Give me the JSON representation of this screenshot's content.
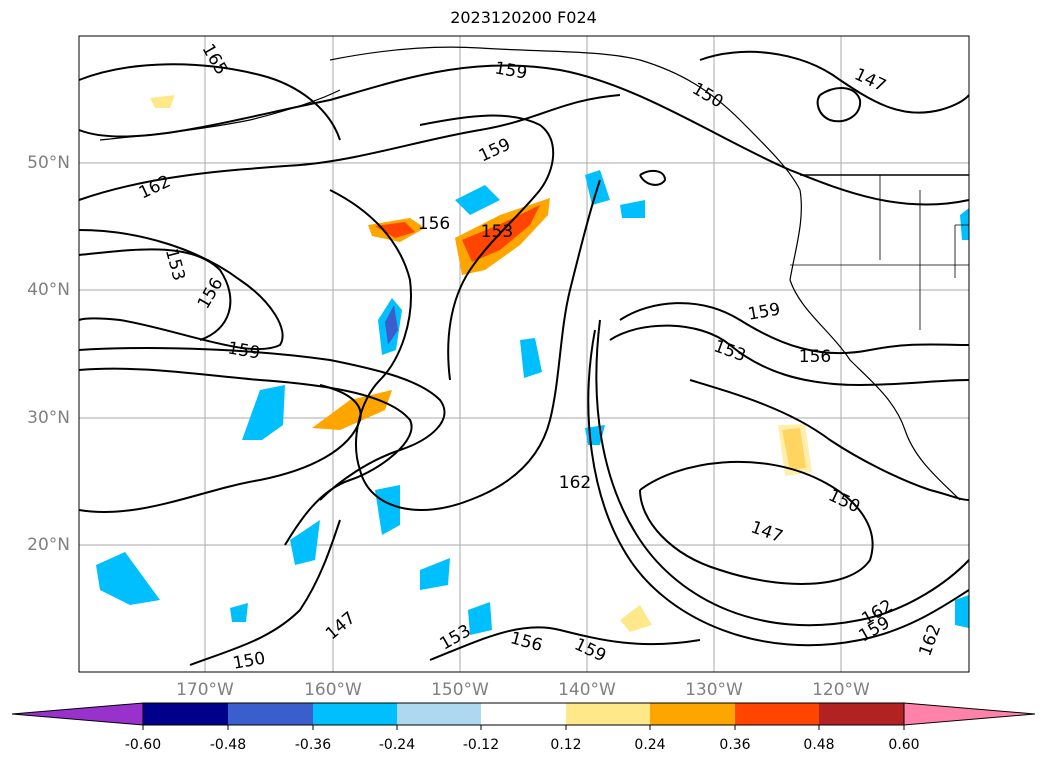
{
  "title": "2023120200 F024",
  "map": {
    "lat_labels": [
      "50°N",
      "40°N",
      "30°N",
      "20°N"
    ],
    "lon_labels": [
      "170°W",
      "160°W",
      "150°W",
      "140°W",
      "130°W",
      "120°W"
    ],
    "contour_labels": [
      "165",
      "162",
      "159",
      "159",
      "156",
      "153",
      "153",
      "156",
      "159",
      "159",
      "153",
      "156",
      "162",
      "150",
      "147",
      "150",
      "147",
      "153",
      "156",
      "159",
      "162",
      "159",
      "162",
      "147",
      "150"
    ]
  },
  "colorbar": {
    "ticks": [
      "-0.60",
      "-0.48",
      "-0.36",
      "-0.24",
      "-0.12",
      "0.12",
      "0.24",
      "0.36",
      "0.48",
      "0.60"
    ],
    "colors": [
      "#9932cc",
      "#00008b",
      "#3a5fcd",
      "#00bfff",
      "#add8f0",
      "#ffffff",
      "#ffe88a",
      "#ffa500",
      "#ff4500",
      "#b22222",
      "#ff82ab"
    ]
  }
}
